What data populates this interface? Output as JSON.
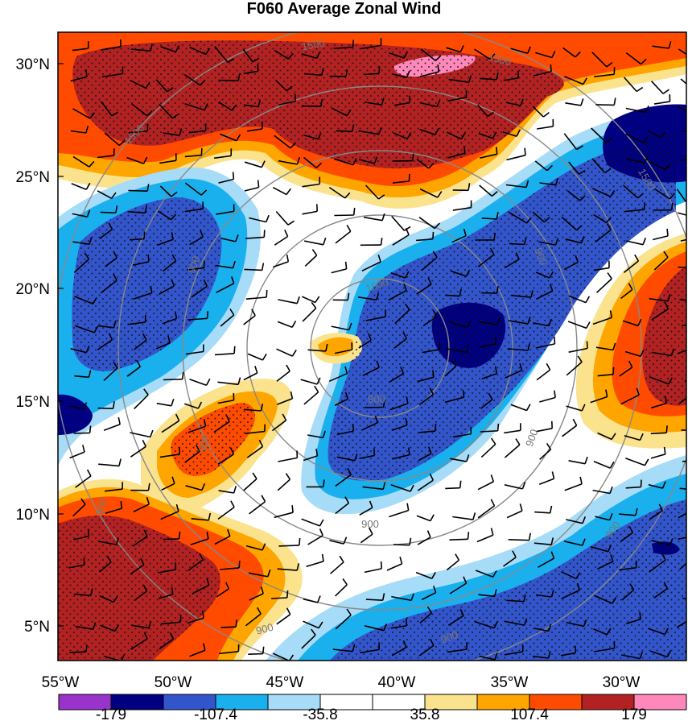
{
  "title": "F060 Average Zonal Wind",
  "lat_labels": [
    "30°N",
    "25°N",
    "20°N",
    "15°N",
    "10°N",
    "5°N"
  ],
  "lon_labels": [
    "55°W",
    "50°W",
    "45°W",
    "40°W",
    "35°W",
    "30°W"
  ],
  "colorbar": {
    "colors": [
      "#9933cc",
      "#000080",
      "#3355cc",
      "#1ab0ee",
      "#a6dcf7",
      "#ffffff",
      "#ffffff",
      "#fbe38e",
      "#ffa500",
      "#ff4b00",
      "#b22222",
      "#ff88bb"
    ],
    "tick_labels": [
      "-179",
      "-107.4",
      "-35.8",
      "35.8",
      "107.4",
      "179"
    ]
  },
  "contour_labels": [
    "1500",
    "1500",
    "1500",
    "1500",
    "900",
    "900",
    "900",
    "900",
    "900",
    "900",
    "900",
    "900",
    "900",
    "900",
    "1500"
  ]
}
